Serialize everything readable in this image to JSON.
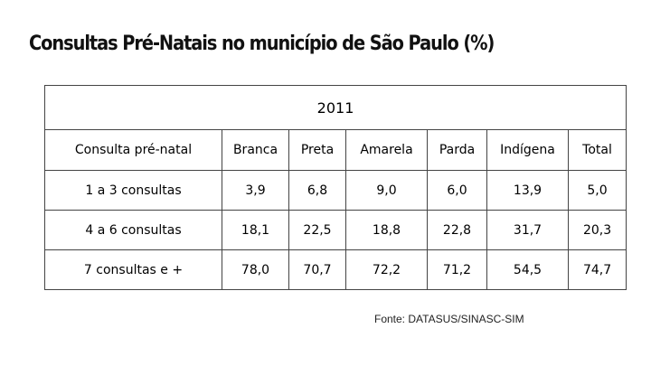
{
  "title": "Consultas Pré-Natais no município de São Paulo (%)",
  "table": {
    "year": "2011",
    "headers": [
      "Consulta pré-natal",
      "Branca",
      "Preta",
      "Amarela",
      "Parda",
      "Indígena",
      "Total"
    ],
    "rows": [
      {
        "label": "1 a 3 consultas",
        "values": [
          "3,9",
          "6,8",
          "9,0",
          "6,0",
          "13,9",
          "5,0"
        ]
      },
      {
        "label": "4 a 6 consultas",
        "values": [
          "18,1",
          "22,5",
          "18,8",
          "22,8",
          "31,7",
          "20,3"
        ]
      },
      {
        "label": "7 consultas e +",
        "values": [
          "78,0",
          "70,7",
          "72,2",
          "71,2",
          "54,5",
          "74,7"
        ]
      }
    ]
  },
  "source": "Fonte: DATASUS/SINASC-SIM"
}
